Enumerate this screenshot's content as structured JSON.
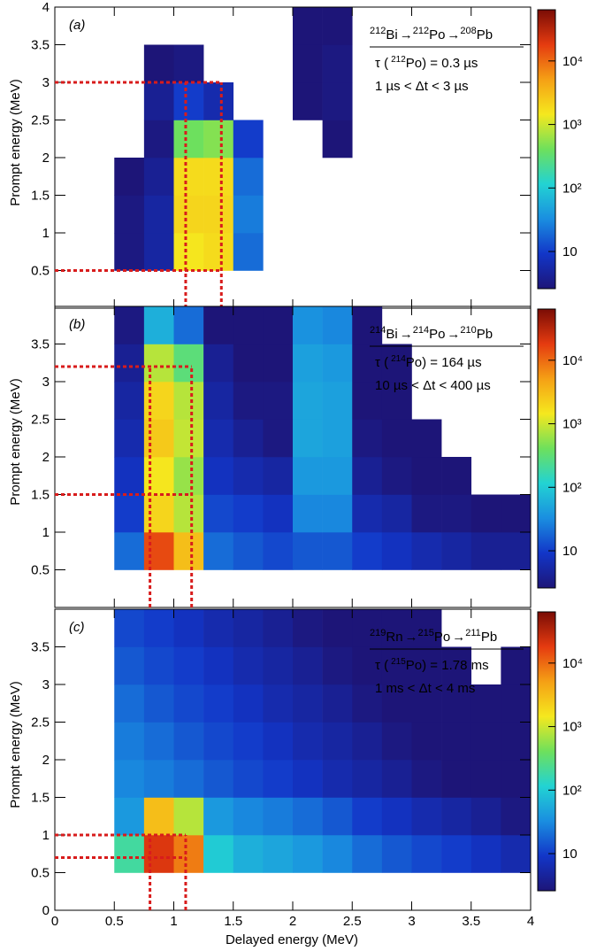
{
  "chart_data": [
    {
      "type": "heatmap",
      "panel": "(a)",
      "ylabel": "Prompt energy (MeV)",
      "xlim": [
        0,
        4
      ],
      "ylim": [
        0,
        4
      ],
      "xticks": [
        0,
        0.5,
        1,
        1.5,
        2,
        2.5,
        3,
        3.5,
        4
      ],
      "yticks": [
        0.5,
        1,
        1.5,
        2,
        2.5,
        3,
        3.5,
        4
      ],
      "xbins": [
        0.5,
        0.75,
        1,
        1.25,
        1.5,
        1.75,
        2,
        2.25,
        2.5,
        2.75,
        3,
        3.25,
        3.5,
        3.75,
        4
      ],
      "ybins": [
        0.5,
        1,
        1.5,
        2,
        2.5,
        3,
        3.5,
        4
      ],
      "z": [
        [
          3,
          5,
          1500,
          1800,
          20,
          0,
          0,
          0,
          0,
          0,
          0,
          0,
          0,
          0
        ],
        [
          3,
          5,
          2000,
          2000,
          25,
          0,
          0,
          0,
          0,
          0,
          0,
          0,
          0,
          0
        ],
        [
          2,
          4,
          1800,
          1800,
          20,
          0,
          0,
          0,
          0,
          0,
          0,
          0,
          0,
          0
        ],
        [
          0,
          3,
          400,
          500,
          10,
          0,
          0,
          2,
          0,
          0,
          0,
          0,
          0,
          0
        ],
        [
          0,
          4,
          10,
          6,
          0,
          0,
          2,
          3,
          0,
          0,
          0,
          0,
          0,
          0
        ],
        [
          0,
          2,
          3,
          0,
          0,
          0,
          2,
          3,
          0,
          0,
          0,
          0,
          0,
          0
        ],
        [
          0,
          0,
          0,
          0,
          0,
          0,
          1,
          2,
          0,
          0,
          0,
          0,
          0,
          0
        ]
      ],
      "zlim": [
        2.6,
        64000
      ],
      "log_z": true,
      "zticks": [
        10,
        {
          "value": 100,
          "label": "10²"
        },
        {
          "value": 1000,
          "label": "10³"
        },
        {
          "value": 10000,
          "label": "10⁴"
        }
      ],
      "colormap": [
        "#1d1578",
        "#1236c8",
        "#1a8ee0",
        "#22d3d3",
        "#6ee05c",
        "#f5e81e",
        "#f5a015",
        "#e53b10",
        "#7a0c05"
      ],
      "cut": {
        "x": [
          1.1,
          1.4
        ],
        "y": [
          0.5,
          3
        ],
        "color": "#d81c1c"
      },
      "arrow": "→",
      "decay": [
        {
          "A": "212",
          "symbol": "Bi"
        },
        {
          "A": "212",
          "symbol": "Po"
        },
        {
          "A": "208",
          "symbol": "Pb"
        }
      ],
      "lifetime": {
        "prefix": "τ (",
        "A": "212",
        "symbol": "Po",
        "suffix": ") = 0.3 µs"
      },
      "window": "1 µs < Δt < 3 µs"
    },
    {
      "type": "heatmap",
      "panel": "(b)",
      "ylabel": "Prompt energy (MeV)",
      "xlim": [
        0,
        4
      ],
      "ylim": [
        0,
        4
      ],
      "xticks": [
        0,
        0.5,
        1,
        1.5,
        2,
        2.5,
        3,
        3.5,
        4
      ],
      "yticks": [
        0.5,
        1,
        1.5,
        2,
        2.5,
        3,
        3.5
      ],
      "xbins": [
        0.5,
        0.75,
        1,
        1.25,
        1.5,
        1.75,
        2,
        2.25,
        2.5,
        2.75,
        3,
        3.25,
        3.5,
        3.75,
        4
      ],
      "ybins": [
        0.5,
        1,
        1.5,
        2,
        2.5,
        3,
        3.5,
        4
      ],
      "z": [
        [
          20,
          15000,
          3000,
          20,
          15,
          12,
          15,
          15,
          10,
          8,
          6,
          5,
          4,
          4
        ],
        [
          10,
          2000,
          800,
          12,
          10,
          8,
          30,
          30,
          6,
          5,
          3,
          3,
          2,
          2
        ],
        [
          8,
          1500,
          600,
          8,
          6,
          5,
          40,
          40,
          4,
          3,
          2,
          1,
          0,
          0
        ],
        [
          6,
          2500,
          900,
          6,
          4,
          3,
          50,
          45,
          3,
          2,
          1,
          0,
          0,
          0
        ],
        [
          5,
          2000,
          800,
          5,
          3,
          3,
          50,
          45,
          2,
          2,
          0,
          0,
          0,
          0
        ],
        [
          4,
          800,
          300,
          4,
          2,
          2,
          45,
          40,
          2,
          1,
          0,
          0,
          0,
          0
        ],
        [
          3,
          60,
          20,
          2,
          1,
          1,
          35,
          30,
          1,
          0,
          0,
          0,
          0,
          0
        ]
      ],
      "zlim": [
        2.6,
        64000
      ],
      "log_z": true,
      "zticks": [
        10,
        {
          "value": 100,
          "label": "10²"
        },
        {
          "value": 1000,
          "label": "10³"
        },
        {
          "value": 10000,
          "label": "10⁴"
        }
      ],
      "colormap": [
        "#1d1578",
        "#1236c8",
        "#1a8ee0",
        "#22d3d3",
        "#6ee05c",
        "#f5e81e",
        "#f5a015",
        "#e53b10",
        "#7a0c05"
      ],
      "cut": {
        "x": [
          0.8,
          1.15
        ],
        "y": [
          1.5,
          3.2
        ],
        "color": "#d81c1c"
      },
      "arrow": "→",
      "decay": [
        {
          "A": "214",
          "symbol": "Bi"
        },
        {
          "A": "214",
          "symbol": "Po"
        },
        {
          "A": "210",
          "symbol": "Pb"
        }
      ],
      "lifetime": {
        "prefix": "τ (",
        "A": "214",
        "symbol": "Po",
        "suffix": ") = 164 µs"
      },
      "window": "10 µs < Δt < 400 µs"
    },
    {
      "type": "heatmap",
      "panel": "(c)",
      "ylabel": "Prompt energy (MeV)",
      "xlabel": "Delayed energy (MeV)",
      "xlim": [
        0,
        4
      ],
      "ylim": [
        0,
        4
      ],
      "xticks": [
        0,
        0.5,
        1,
        1.5,
        2,
        2.5,
        3,
        3.5,
        4
      ],
      "yticks": [
        0,
        0.5,
        1,
        1.5,
        2,
        2.5,
        3,
        3.5
      ],
      "xbins": [
        0.5,
        0.75,
        1,
        1.25,
        1.5,
        1.75,
        2,
        2.25,
        2.5,
        2.75,
        3,
        3.25,
        3.5,
        3.75,
        4
      ],
      "ybins": [
        0.5,
        1,
        1.5,
        2,
        2.5,
        3,
        3.5,
        4
      ],
      "z": [
        [
          200,
          20000,
          8000,
          100,
          60,
          50,
          40,
          30,
          20,
          15,
          12,
          10,
          8,
          6
        ],
        [
          40,
          3000,
          800,
          40,
          30,
          25,
          20,
          15,
          10,
          8,
          6,
          5,
          4,
          3
        ],
        [
          30,
          25,
          20,
          15,
          12,
          10,
          8,
          6,
          5,
          4,
          3,
          2,
          2,
          1
        ],
        [
          25,
          20,
          15,
          12,
          10,
          8,
          6,
          5,
          4,
          3,
          2,
          2,
          1,
          1
        ],
        [
          20,
          15,
          12,
          10,
          8,
          6,
          5,
          4,
          3,
          2,
          2,
          1,
          1,
          1
        ],
        [
          15,
          12,
          10,
          8,
          6,
          5,
          4,
          3,
          2,
          2,
          1,
          1,
          0,
          1
        ],
        [
          12,
          10,
          8,
          6,
          5,
          4,
          3,
          2,
          2,
          1,
          1,
          0,
          0,
          0
        ]
      ],
      "zlim": [
        2.6,
        64000
      ],
      "log_z": true,
      "zticks": [
        10,
        {
          "value": 100,
          "label": "10²"
        },
        {
          "value": 1000,
          "label": "10³"
        },
        {
          "value": 10000,
          "label": "10⁴"
        }
      ],
      "colormap": [
        "#1d1578",
        "#1236c8",
        "#1a8ee0",
        "#22d3d3",
        "#6ee05c",
        "#f5e81e",
        "#f5a015",
        "#e53b10",
        "#7a0c05"
      ],
      "cut": {
        "x": [
          0.8,
          1.1
        ],
        "y": [
          0.7,
          1
        ],
        "color": "#d81c1c"
      },
      "arrow": "→",
      "decay": [
        {
          "A": "219",
          "symbol": "Rn"
        },
        {
          "A": "215",
          "symbol": "Po"
        },
        {
          "A": "211",
          "symbol": "Pb"
        }
      ],
      "lifetime": {
        "prefix": "τ (",
        "A": "215",
        "symbol": "Po",
        "suffix": ") = 1.78 ms"
      },
      "window": "1 ms < Δt < 4 ms"
    }
  ]
}
